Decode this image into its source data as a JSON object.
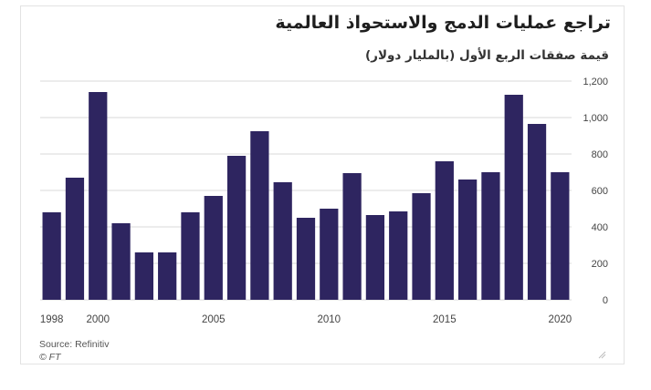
{
  "title": "تراجع عمليات الدمج والاستحواذ العالمية",
  "subtitle": "قيمة صفقات الربع الأول (بالمليار دولار)",
  "source": "Source: Refinitiv",
  "credit": "© FT",
  "colors": {
    "bar": "#2e2560",
    "grid": "#d9d9d9",
    "axis_text": "#444444"
  },
  "chart_data": {
    "type": "bar",
    "title": "تراجع عمليات الدمج والاستحواذ العالمية",
    "subtitle": "قيمة صفقات الربع الأول (بالمليار دولار)",
    "x": [
      1998,
      1999,
      2000,
      2001,
      2002,
      2003,
      2004,
      2005,
      2006,
      2007,
      2008,
      2009,
      2010,
      2011,
      2012,
      2013,
      2014,
      2015,
      2016,
      2017,
      2018,
      2019,
      2020
    ],
    "values": [
      480,
      670,
      1140,
      420,
      260,
      260,
      480,
      570,
      790,
      925,
      645,
      450,
      500,
      695,
      465,
      485,
      585,
      760,
      660,
      700,
      1125,
      965,
      700
    ],
    "xticks": [
      "1998",
      "2000",
      "2005",
      "2010",
      "2015",
      "2020"
    ],
    "yticks": [
      "0",
      "200",
      "400",
      "600",
      "800",
      "1,000",
      "1,200"
    ],
    "ylim": [
      0,
      1200
    ],
    "grid": true,
    "y_axis_side": "right"
  }
}
